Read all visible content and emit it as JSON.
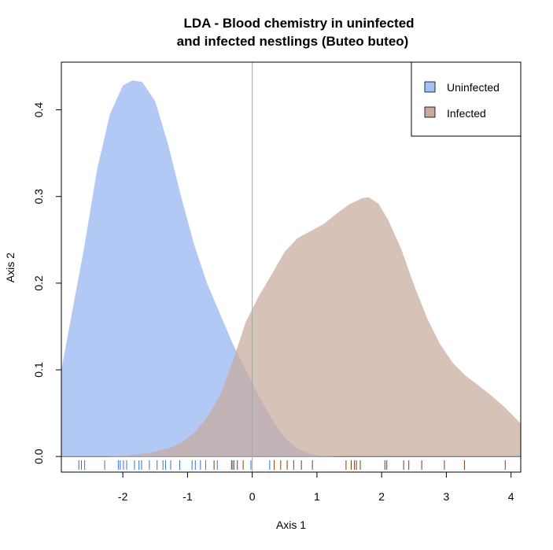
{
  "chart_data": {
    "type": "area",
    "title_line1": "LDA - Blood chemistry in uninfected",
    "title_line2": "and infected nestlings (Buteo buteo)",
    "xlabel": "Axis 1",
    "ylabel": "Axis 2",
    "xlim": [
      -2.95,
      4.15
    ],
    "ylim": [
      -0.018,
      0.455
    ],
    "x_ticks": [
      -2,
      -1,
      0,
      1,
      2,
      3,
      4
    ],
    "y_ticks": [
      0.0,
      0.1,
      0.2,
      0.3,
      0.4
    ],
    "x_tick_labels": [
      "-2",
      "-1",
      "0",
      "1",
      "2",
      "3",
      "4"
    ],
    "y_tick_labels": [
      "0.0",
      "0.1",
      "0.2",
      "0.3",
      "0.4"
    ],
    "reference_line_x": 0,
    "legend_position": "top-right",
    "series": [
      {
        "name": "Uninfected",
        "color": "#a4c0f5",
        "rug_color": "#3a6fcc",
        "points": [
          [
            -2.95,
            0.1
          ],
          [
            -2.8,
            0.16
          ],
          [
            -2.6,
            0.24
          ],
          [
            -2.4,
            0.33
          ],
          [
            -2.2,
            0.395
          ],
          [
            -2.0,
            0.428
          ],
          [
            -1.85,
            0.434
          ],
          [
            -1.7,
            0.432
          ],
          [
            -1.5,
            0.41
          ],
          [
            -1.3,
            0.36
          ],
          [
            -1.1,
            0.3
          ],
          [
            -0.9,
            0.245
          ],
          [
            -0.7,
            0.2
          ],
          [
            -0.5,
            0.165
          ],
          [
            -0.3,
            0.13
          ],
          [
            -0.1,
            0.1
          ],
          [
            0.1,
            0.07
          ],
          [
            0.3,
            0.044
          ],
          [
            0.5,
            0.022
          ],
          [
            0.7,
            0.009
          ],
          [
            0.9,
            0.003
          ],
          [
            1.1,
            0.0005
          ],
          [
            1.3,
            0.0
          ]
        ],
        "rug": [
          -2.68,
          -2.64,
          -2.59,
          -2.28,
          -2.07,
          -2.04,
          -1.99,
          -1.94,
          -1.82,
          -1.75,
          -1.71,
          -1.59,
          -1.47,
          -1.38,
          -1.34,
          -1.26,
          -1.12,
          -0.93,
          -0.88,
          -0.8,
          -0.72,
          -0.54,
          -0.3,
          -0.28,
          -0.02,
          0.27
        ]
      },
      {
        "name": "Infected",
        "color": "#c8aa9d",
        "rug_color": "#7a3c18",
        "points": [
          [
            -2.2,
            0.0
          ],
          [
            -1.9,
            0.0015
          ],
          [
            -1.6,
            0.004
          ],
          [
            -1.3,
            0.009
          ],
          [
            -1.1,
            0.016
          ],
          [
            -0.9,
            0.027
          ],
          [
            -0.7,
            0.045
          ],
          [
            -0.5,
            0.07
          ],
          [
            -0.3,
            0.11
          ],
          [
            -0.1,
            0.155
          ],
          [
            0.1,
            0.185
          ],
          [
            0.3,
            0.21
          ],
          [
            0.5,
            0.236
          ],
          [
            0.7,
            0.252
          ],
          [
            0.9,
            0.26
          ],
          [
            1.1,
            0.268
          ],
          [
            1.3,
            0.28
          ],
          [
            1.5,
            0.291
          ],
          [
            1.7,
            0.298
          ],
          [
            1.8,
            0.299
          ],
          [
            1.95,
            0.292
          ],
          [
            2.1,
            0.273
          ],
          [
            2.3,
            0.24
          ],
          [
            2.5,
            0.198
          ],
          [
            2.7,
            0.16
          ],
          [
            2.9,
            0.13
          ],
          [
            3.1,
            0.108
          ],
          [
            3.3,
            0.093
          ],
          [
            3.5,
            0.082
          ],
          [
            3.7,
            0.07
          ],
          [
            3.9,
            0.057
          ],
          [
            4.15,
            0.038
          ]
        ],
        "rug": [
          -0.59,
          -0.32,
          -0.23,
          -0.14,
          0.34,
          0.44,
          0.54,
          0.64,
          0.76,
          0.93,
          1.45,
          1.53,
          1.58,
          1.61,
          1.67,
          2.05,
          2.08,
          2.34,
          2.42,
          2.62,
          2.97,
          3.28,
          3.91
        ]
      }
    ]
  }
}
